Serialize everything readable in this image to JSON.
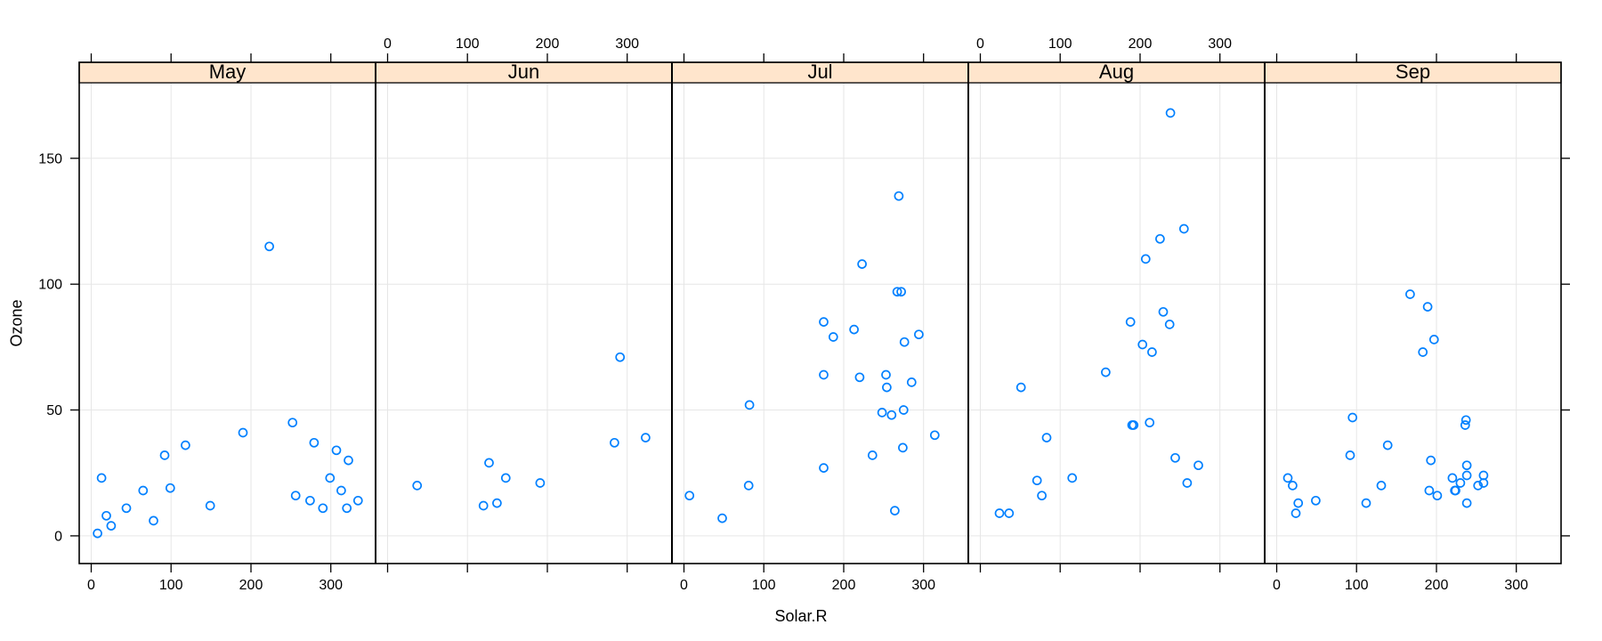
{
  "chart_data": {
    "type": "scatter",
    "title": "",
    "xlabel": "Solar.R",
    "ylabel": "Ozone",
    "x_ticks": [
      0,
      100,
      200,
      300
    ],
    "y_ticks": [
      0,
      50,
      100,
      150
    ],
    "xlim": [
      -15,
      356
    ],
    "ylim": [
      -11,
      180
    ],
    "grid": true,
    "legend": "none",
    "x_labels_top_panels": [
      "Jun",
      "Aug"
    ],
    "x_labels_bottom_panels": [
      "May",
      "Jul",
      "Sep"
    ],
    "y_labels_left_only": true,
    "panels": [
      {
        "label": "May",
        "points": [
          [
            190,
            41
          ],
          [
            118,
            36
          ],
          [
            149,
            12
          ],
          [
            313,
            18
          ],
          [
            299,
            23
          ],
          [
            99,
            19
          ],
          [
            19,
            8
          ],
          [
            256,
            16
          ],
          [
            290,
            11
          ],
          [
            274,
            14
          ],
          [
            65,
            18
          ],
          [
            334,
            14
          ],
          [
            307,
            34
          ],
          [
            78,
            6
          ],
          [
            322,
            30
          ],
          [
            44,
            11
          ],
          [
            8,
            1
          ],
          [
            320,
            11
          ],
          [
            25,
            4
          ],
          [
            92,
            32
          ],
          [
            13,
            23
          ],
          [
            252,
            45
          ],
          [
            223,
            115
          ],
          [
            279,
            37
          ]
        ]
      },
      {
        "label": "Jun",
        "points": [
          [
            127,
            29
          ],
          [
            291,
            71
          ],
          [
            323,
            39
          ],
          [
            148,
            23
          ],
          [
            191,
            21
          ],
          [
            284,
            37
          ],
          [
            37,
            20
          ],
          [
            120,
            12
          ],
          [
            137,
            13
          ]
        ]
      },
      {
        "label": "Jul",
        "points": [
          [
            269,
            135
          ],
          [
            248,
            49
          ],
          [
            236,
            32
          ],
          [
            175,
            64
          ],
          [
            314,
            40
          ],
          [
            276,
            77
          ],
          [
            267,
            97
          ],
          [
            272,
            97
          ],
          [
            175,
            85
          ],
          [
            264,
            10
          ],
          [
            175,
            27
          ],
          [
            48,
            7
          ],
          [
            260,
            48
          ],
          [
            274,
            35
          ],
          [
            285,
            61
          ],
          [
            187,
            79
          ],
          [
            220,
            63
          ],
          [
            7,
            16
          ],
          [
            294,
            80
          ],
          [
            223,
            108
          ],
          [
            81,
            20
          ],
          [
            82,
            52
          ],
          [
            213,
            82
          ],
          [
            275,
            50
          ],
          [
            253,
            64
          ],
          [
            254,
            59
          ]
        ]
      },
      {
        "label": "Aug",
        "points": [
          [
            83,
            39
          ],
          [
            24,
            9
          ],
          [
            77,
            16
          ],
          [
            255,
            122
          ],
          [
            229,
            89
          ],
          [
            207,
            110
          ],
          [
            192,
            44
          ],
          [
            273,
            28
          ],
          [
            157,
            65
          ],
          [
            71,
            22
          ],
          [
            51,
            59
          ],
          [
            115,
            23
          ],
          [
            244,
            31
          ],
          [
            190,
            44
          ],
          [
            259,
            21
          ],
          [
            36,
            9
          ],
          [
            212,
            45
          ],
          [
            238,
            168
          ],
          [
            215,
            73
          ],
          [
            203,
            76
          ],
          [
            225,
            118
          ],
          [
            237,
            84
          ],
          [
            188,
            85
          ]
        ]
      },
      {
        "label": "Sep",
        "points": [
          [
            167,
            96
          ],
          [
            197,
            78
          ],
          [
            183,
            73
          ],
          [
            189,
            91
          ],
          [
            95,
            47
          ],
          [
            92,
            32
          ],
          [
            252,
            20
          ],
          [
            220,
            23
          ],
          [
            230,
            21
          ],
          [
            259,
            24
          ],
          [
            236,
            44
          ],
          [
            259,
            21
          ],
          [
            238,
            28
          ],
          [
            24,
            9
          ],
          [
            112,
            13
          ],
          [
            237,
            46
          ],
          [
            224,
            18
          ],
          [
            27,
            13
          ],
          [
            238,
            24
          ],
          [
            201,
            16
          ],
          [
            238,
            13
          ],
          [
            14,
            23
          ],
          [
            139,
            36
          ],
          [
            49,
            14
          ],
          [
            20,
            20
          ],
          [
            193,
            30
          ],
          [
            191,
            18
          ],
          [
            131,
            20
          ],
          [
            223,
            18
          ]
        ]
      }
    ]
  },
  "style": {
    "point_color": "#0080ff",
    "strip_fill": "#ffe5cc",
    "grid_color": "#e6e6e6",
    "axis_color": "#000000",
    "text_color": "#000000",
    "background": "#ffffff"
  }
}
